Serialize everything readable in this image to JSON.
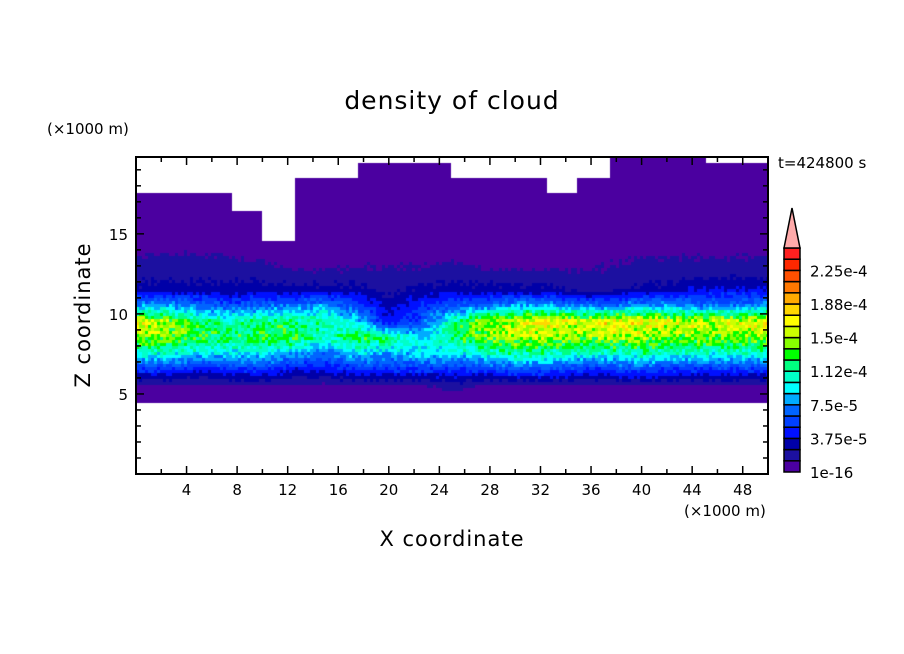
{
  "chart_data": {
    "type": "heatmap",
    "title": "density of cloud",
    "xlabel": "X coordinate",
    "ylabel": "Z coordinate",
    "x_unit": "(×1000 m)",
    "y_unit": "(×1000 m)",
    "annotation": "t=424800 s",
    "xlim": [
      0,
      50
    ],
    "ylim": [
      0,
      19.8
    ],
    "x_ticks": [
      4,
      8,
      12,
      16,
      20,
      24,
      28,
      32,
      36,
      40,
      44,
      48
    ],
    "y_ticks": [
      5,
      10,
      15
    ],
    "grid": false,
    "colorbar": {
      "levels": [
        1e-16,
        1.25e-05,
        2.5e-05,
        3.75e-05,
        5e-05,
        6.25e-05,
        7.5e-05,
        8.75e-05,
        0.0001,
        0.0001125,
        0.000125,
        0.0001375,
        0.00015,
        0.0001625,
        0.000175,
        0.0001875,
        0.0002,
        0.0002125,
        0.000225,
        0.0002375,
        0.00025
      ],
      "tick_labels": [
        "1e-16",
        "3.75e-5",
        "7.5e-5",
        "1.12e-4",
        "1.5e-4",
        "1.88e-4",
        "2.25e-4"
      ],
      "colors": [
        "#4b00a0",
        "#1c10a0",
        "#0000a8",
        "#0010ff",
        "#0040ff",
        "#0064ff",
        "#00aaff",
        "#00ffff",
        "#00ffc8",
        "#00ff80",
        "#00ff00",
        "#88ff00",
        "#ccff00",
        "#ffff00",
        "#ffd700",
        "#ffaa00",
        "#ff7800",
        "#ff5000",
        "#ff2800",
        "#ff2020"
      ],
      "extend_color": "#ffaaaa",
      "position": "right"
    },
    "grid_x": [
      0,
      2.5,
      5,
      7.5,
      10,
      12.5,
      15,
      17.5,
      20,
      22.5,
      25,
      27.5,
      30,
      32.5,
      35,
      37.5,
      40,
      42.5,
      45,
      47.5,
      50
    ],
    "grid_z": [
      0.5,
      1.5,
      2.5,
      3.5,
      4.5,
      5.5,
      6.5,
      7.5,
      8.5,
      9.5,
      10.5,
      11.5,
      12.5,
      13.5,
      14.5,
      15.5,
      16.5,
      17.5,
      18.5,
      19.5
    ],
    "values": [
      [
        0,
        0,
        0,
        0,
        0,
        0,
        0,
        0,
        0,
        0,
        0,
        0,
        0,
        0,
        0,
        0,
        0,
        0,
        0,
        0,
        0
      ],
      [
        0,
        0,
        0,
        0,
        0,
        0,
        0,
        0,
        0,
        0,
        0,
        0,
        0,
        0,
        0,
        0,
        0,
        0,
        0,
        0,
        0
      ],
      [
        0,
        0,
        0,
        0,
        0,
        0,
        0,
        0,
        0,
        0,
        0,
        0,
        0,
        0,
        0,
        0,
        0,
        0,
        0,
        0,
        0
      ],
      [
        0,
        0,
        0,
        0,
        0,
        0,
        0,
        0,
        0,
        0,
        0,
        0,
        0,
        0,
        0,
        0,
        0,
        0,
        0,
        0,
        0
      ],
      [
        0,
        0,
        0,
        0,
        0,
        0,
        0,
        0,
        0,
        0,
        0,
        0,
        0,
        0,
        0,
        0,
        0,
        0,
        0,
        0,
        0
      ],
      [
        1e-05,
        1e-05,
        1e-05,
        1e-05,
        1e-05,
        1e-05,
        1e-05,
        1e-05,
        1e-05,
        1e-05,
        2e-05,
        1e-05,
        1e-05,
        1e-05,
        1e-05,
        1e-05,
        1e-05,
        1e-05,
        1e-05,
        1e-05,
        1e-05
      ],
      [
        5e-05,
        5e-05,
        4e-05,
        5e-05,
        5e-05,
        4e-05,
        4e-05,
        5e-05,
        5e-05,
        5e-05,
        5e-05,
        5e-05,
        6e-05,
        6e-05,
        5e-05,
        5e-05,
        6e-05,
        5e-05,
        5e-05,
        5e-05,
        5e-05
      ],
      [
        0.0001,
        0.0001,
        9e-05,
        9e-05,
        9e-05,
        8e-05,
        7e-05,
        9e-05,
        8e-05,
        9e-05,
        9e-05,
        0.0001,
        0.00011,
        0.00011,
        0.0001,
        0.0001,
        0.00011,
        0.0001,
        0.0001,
        0.0001,
        0.0001
      ],
      [
        0.00015,
        0.00014,
        0.00013,
        0.00012,
        0.00013,
        0.00013,
        0.0001,
        0.00013,
        0.00012,
        9e-05,
        0.00012,
        0.00014,
        0.00015,
        0.00015,
        0.00014,
        0.00015,
        0.00015,
        0.00014,
        0.00014,
        0.00014,
        0.00015
      ],
      [
        0.00017,
        0.00015,
        0.00012,
        0.00011,
        0.00012,
        0.00012,
        0.00011,
        9e-05,
        4e-05,
        6e-05,
        0.00011,
        0.00015,
        0.00016,
        0.00017,
        0.00016,
        0.00017,
        0.00017,
        0.00016,
        0.00016,
        0.00016,
        0.00017
      ],
      [
        8e-05,
        8e-05,
        7e-05,
        6e-05,
        7e-05,
        7e-05,
        8e-05,
        6e-05,
        3e-05,
        5e-05,
        6e-05,
        7e-05,
        8e-05,
        8e-05,
        7e-05,
        7e-05,
        8e-05,
        8e-05,
        7e-05,
        7e-05,
        8e-05
      ],
      [
        3e-05,
        3e-05,
        3e-05,
        3e-05,
        3e-05,
        3e-05,
        3e-05,
        3e-05,
        2e-05,
        3e-05,
        3e-05,
        3e-05,
        3e-05,
        3e-05,
        2e-05,
        2e-05,
        3e-05,
        3e-05,
        4e-05,
        4e-05,
        4e-05
      ],
      [
        2e-05,
        2e-05,
        2e-05,
        2e-05,
        2e-05,
        1.5e-05,
        1.5e-05,
        1.5e-05,
        1.5e-05,
        1.5e-05,
        2e-05,
        1.5e-05,
        1.5e-05,
        1.5e-05,
        1.5e-05,
        1.5e-05,
        2e-05,
        2e-05,
        2e-05,
        2e-05,
        2e-05
      ],
      [
        1.3e-05,
        1.5e-05,
        1.5e-05,
        1.3e-05,
        1e-05,
        5e-06,
        5e-06,
        1e-05,
        1e-05,
        1e-05,
        1e-05,
        5e-06,
        5e-06,
        5e-06,
        5e-06,
        1e-05,
        1.3e-05,
        1.3e-05,
        1.3e-05,
        1.3e-05,
        1.3e-05
      ],
      [
        5e-06,
        5e-06,
        5e-06,
        3e-06,
        0,
        0,
        3e-06,
        5e-06,
        5e-06,
        5e-06,
        5e-06,
        5e-06,
        5e-06,
        5e-06,
        5e-06,
        5e-06,
        5e-06,
        5e-06,
        5e-06,
        5e-06,
        5e-06
      ],
      [
        3e-06,
        3e-06,
        3e-06,
        3e-06,
        0,
        0,
        3e-06,
        3e-06,
        3e-06,
        3e-06,
        0,
        0,
        0,
        0,
        0,
        0,
        0,
        0,
        0,
        0,
        0
      ],
      [
        3e-06,
        3e-06,
        3e-06,
        0,
        0,
        0,
        0,
        3e-06,
        3e-06,
        3e-06,
        3e-06,
        3e-06,
        3e-06,
        3e-06,
        3e-06,
        3e-06,
        3e-06,
        3e-06,
        3e-06,
        3e-06,
        3e-06
      ],
      [
        0,
        0,
        0,
        0,
        0,
        0,
        3e-06,
        3e-06,
        3e-06,
        3e-06,
        3e-06,
        3e-06,
        3e-06,
        0,
        0,
        3e-06,
        3e-06,
        3e-06,
        3e-06,
        3e-06,
        3e-06
      ],
      [
        0,
        0,
        0,
        0,
        0,
        0,
        0,
        0,
        3e-06,
        3e-06,
        0,
        0,
        0,
        0,
        0,
        0,
        3e-06,
        3e-06,
        0,
        3e-06,
        0
      ],
      [
        0,
        0,
        0,
        0,
        0,
        0,
        0,
        0,
        0,
        0,
        0,
        0,
        0,
        0,
        0,
        0,
        3e-06,
        3e-06,
        0,
        0,
        0
      ]
    ]
  }
}
